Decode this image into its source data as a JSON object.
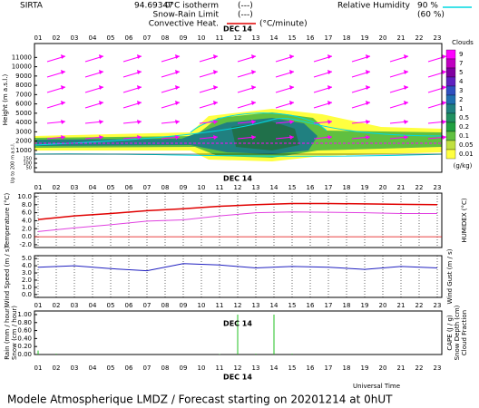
{
  "header": {
    "station": "SIRTA",
    "code": "94.69347",
    "legend": [
      {
        "label": "0°C isotherm",
        "symbol": "(---)",
        "color": "#ff00ff"
      },
      {
        "label": "Snow-Rain Limit",
        "symbol": "(---)",
        "color": "#ff00ff"
      },
      {
        "label": "Convective Heat.",
        "symbol": "(°C/minute)",
        "color": "#e00000"
      }
    ],
    "humidity": {
      "label": "Relative Humidity",
      "high": "90 %",
      "low": "(60 %)",
      "color": "#00d8e0"
    }
  },
  "time_axis": {
    "date_label": "DEC 14",
    "label": "Universal Time",
    "xlim": [
      1,
      23
    ],
    "xticks": [
      {
        "value": 1,
        "label": "01"
      },
      {
        "value": 2,
        "label": "02"
      },
      {
        "value": 3,
        "label": "03"
      },
      {
        "value": 4,
        "label": "04"
      },
      {
        "value": 5,
        "label": "05"
      },
      {
        "value": 6,
        "label": "06"
      },
      {
        "value": 7,
        "label": "07"
      },
      {
        "value": 8,
        "label": "08"
      },
      {
        "value": 9,
        "label": "09"
      },
      {
        "value": 10,
        "label": "10"
      },
      {
        "value": 11,
        "label": "11"
      },
      {
        "value": 12,
        "label": "12"
      },
      {
        "value": 13,
        "label": "13"
      },
      {
        "value": 14,
        "label": "14"
      },
      {
        "value": 15,
        "label": "15"
      },
      {
        "value": 16,
        "label": "16"
      },
      {
        "value": 17,
        "label": "17"
      },
      {
        "value": 18,
        "label": "18"
      },
      {
        "value": 19,
        "label": "19"
      },
      {
        "value": 20,
        "label": "20"
      },
      {
        "value": 21,
        "label": "21"
      },
      {
        "value": 22,
        "label": "22"
      },
      {
        "value": 23,
        "label": "23"
      }
    ]
  },
  "chart_data": [
    {
      "type": "cloud",
      "ylabel": "Height (m a.s.l.)",
      "low_label": "Up to 200 m a.s.l.",
      "ylim": [
        600,
        12300
      ],
      "yticks": [
        1000,
        2000,
        3000,
        4000,
        5000,
        6000,
        7000,
        8000,
        9000,
        10000,
        11000
      ],
      "low_ylim": [
        0,
        200
      ],
      "low_yticks": [
        150,
        100,
        50
      ],
      "colorbar": {
        "title": "Clouds",
        "unit": "(g/kg)",
        "levels": [
          9,
          7,
          5,
          4,
          3,
          2,
          1,
          0.5,
          0.2,
          0.1,
          0.05,
          0.01
        ],
        "colors": [
          "#ff00ff",
          "#c000c0",
          "#8000a0",
          "#6020c0",
          "#3050c0",
          "#2070b0",
          "#208080",
          "#209060",
          "#20a040",
          "#60c040",
          "#c0e040",
          "#ffff40"
        ]
      }
    },
    {
      "type": "line",
      "ylim": [
        -2.7,
        10.9
      ],
      "grid": true,
      "yticks": [
        {
          "value": 10,
          "label": "10.0"
        },
        {
          "value": 8,
          "label": "8.0"
        },
        {
          "value": 6,
          "label": "6.0"
        },
        {
          "value": 4,
          "label": "4.0"
        },
        {
          "value": 2,
          "label": "2.0"
        },
        {
          "value": 0,
          "label": "0.0"
        },
        {
          "value": -2,
          "label": "-2.0"
        }
      ],
      "x": [
        1,
        3,
        5,
        7,
        9,
        11,
        13,
        15,
        17,
        19,
        21,
        23
      ],
      "series": [
        {
          "name": "Temperature (°C)",
          "side": "left",
          "color": "#e00000",
          "values": [
            4.3,
            5.2,
            5.8,
            6.5,
            7.0,
            7.6,
            8.0,
            8.3,
            8.3,
            8.2,
            8.1,
            8.0
          ]
        },
        {
          "name": "HUMIDEX (°C)",
          "side": "right",
          "color": "#e040e0",
          "values": [
            1.3,
            2.2,
            3.0,
            3.9,
            4.2,
            5.2,
            6.0,
            6.2,
            6.1,
            6.0,
            5.8,
            5.8
          ]
        }
      ]
    },
    {
      "type": "line",
      "ylim": [
        -0.4,
        5.4
      ],
      "grid": true,
      "yticks": [
        {
          "value": 5,
          "label": "5.0"
        },
        {
          "value": 4,
          "label": "4.0"
        },
        {
          "value": 3,
          "label": "3.0"
        },
        {
          "value": 2,
          "label": "2.0"
        },
        {
          "value": 1,
          "label": "1.0"
        },
        {
          "value": 0,
          "label": "0.0"
        }
      ],
      "x": [
        1,
        3,
        5,
        7,
        9,
        11,
        13,
        15,
        17,
        19,
        21,
        23
      ],
      "series": [
        {
          "name": "Wind Speed (m / s)",
          "side": "left",
          "color": "#2020c0",
          "values": [
            3.8,
            4.0,
            3.6,
            3.3,
            4.3,
            4.1,
            3.7,
            3.9,
            3.8,
            3.5,
            3.9,
            3.7
          ]
        }
      ],
      "right_labels": [
        {
          "text": "Wind Gust (m / s)",
          "color": "#e040e0"
        }
      ]
    },
    {
      "type": "bar",
      "ylim": [
        0,
        1.09
      ],
      "grid": false,
      "yticks": [
        {
          "value": 1,
          "label": "1.00"
        },
        {
          "value": 0.8,
          "label": "0.80"
        },
        {
          "value": 0.6,
          "label": "0.60"
        },
        {
          "value": 0.4,
          "label": "0.40"
        },
        {
          "value": 0.2,
          "label": "0.20"
        },
        {
          "value": 0,
          "label": "0.00"
        }
      ],
      "x": [
        1,
        2,
        3,
        4,
        5,
        6,
        7,
        8,
        9,
        10,
        11,
        12,
        13,
        14,
        15,
        16,
        17,
        18,
        19,
        20,
        21,
        22,
        23
      ],
      "series": [
        {
          "name": "Rain (mm / hour)",
          "side": "left",
          "color": "#20c020",
          "values": [
            0.1,
            0.02,
            0,
            0,
            0,
            0,
            0,
            0,
            0,
            0,
            0.01,
            1.0,
            0.02,
            1.0,
            0.02,
            0,
            0,
            0,
            0,
            0,
            0,
            0,
            0
          ]
        }
      ],
      "left_labels": [
        {
          "text": "Snow (cm / hour)",
          "color": "#2020c0"
        }
      ],
      "right_labels": [
        {
          "text": "CAPE (J / g)",
          "color": "#e00000"
        },
        {
          "text": "Snow Depth (cm)",
          "color": "#2020c0"
        },
        {
          "text": "Cloud Fraction",
          "color": "#2020c0"
        }
      ]
    }
  ],
  "footer": "Modele Atmospherique LMDZ / Forecast starting on 20201214 at 0hUT"
}
